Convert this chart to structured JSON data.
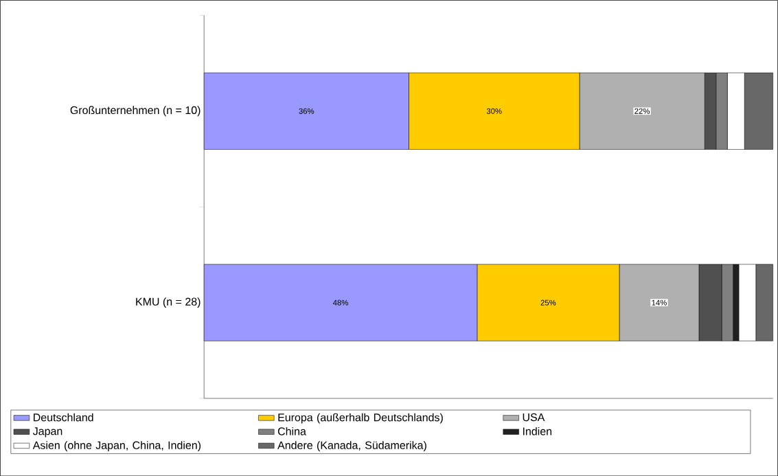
{
  "chart_data": {
    "type": "bar",
    "orientation": "horizontal",
    "stacked": true,
    "categories": [
      "Großunternehmen (n = 10)",
      "KMU (n = 28)"
    ],
    "legend": "bottom",
    "series": [
      {
        "name": "Deutschland",
        "color": "#9999ff",
        "values": [
          36,
          48
        ],
        "value_labels": [
          "36%",
          "48%"
        ]
      },
      {
        "name": "Europa (außerhalb Deutschlands)",
        "color": "#ffcc00",
        "values": [
          30,
          25
        ],
        "value_labels": [
          "30%",
          "25%"
        ]
      },
      {
        "name": "USA",
        "color": "#b0b0b0",
        "values": [
          22,
          14
        ],
        "value_labels": [
          "22%",
          "14%"
        ]
      },
      {
        "name": "Japan",
        "color": "#505050",
        "values": [
          2,
          4
        ]
      },
      {
        "name": "China",
        "color": "#808080",
        "values": [
          2,
          2
        ]
      },
      {
        "name": "Indien",
        "color": "#202020",
        "values": [
          0,
          1
        ]
      },
      {
        "name": "Asien (ohne Japan, China, Indien)",
        "color": "#ffffff",
        "values": [
          3,
          3
        ]
      },
      {
        "name": "Andere (Kanada, Südamerika)",
        "color": "#686868",
        "values": [
          5,
          3
        ]
      }
    ]
  }
}
